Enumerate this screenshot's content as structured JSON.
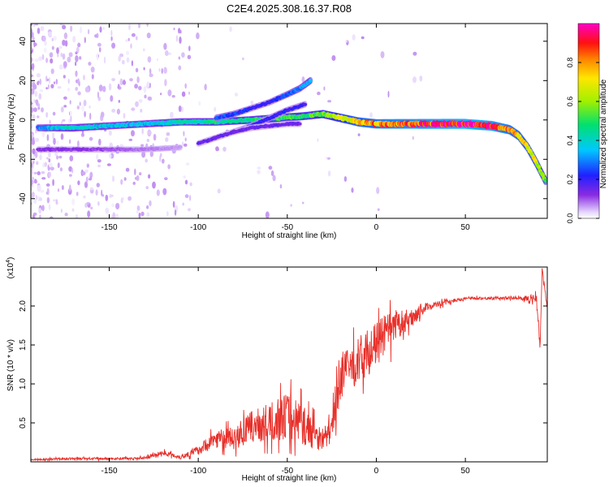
{
  "figure_title": "C2E4.2025.308.16.37.R08",
  "colors": {
    "snr_line": "#e8302a",
    "frame": "#000000",
    "background": "#ffffff"
  },
  "chart_data": [
    {
      "type": "heatmap",
      "title": "C2E4.2025.308.16.37.R08",
      "xlabel": "Height of straight line (km)",
      "ylabel": "Frequency (Hz)",
      "xlim": [
        -194,
        96
      ],
      "ylim": [
        -50,
        49
      ],
      "x_ticks": [
        -150,
        -100,
        -50,
        0,
        50
      ],
      "y_ticks": [
        -40,
        -20,
        0,
        20,
        40
      ],
      "colorbar": {
        "label": "Normalized spectral amplitude",
        "range": [
          0,
          1
        ],
        "ticks": [
          0.0,
          0.2,
          0.4,
          0.6,
          0.8
        ],
        "tick_labels": [
          "0.0",
          "0.2",
          "0.4",
          "0.6",
          "0.8"
        ],
        "colormap": "rainbow (white-violet-blue-cyan-green-yellow-orange-red-magenta)"
      },
      "traces": [
        {
          "name": "main_doppler_trace",
          "x": [
            -190,
            -170,
            -150,
            -130,
            -110,
            -90,
            -70,
            -55,
            -40,
            -30,
            -20,
            -10,
            0,
            10,
            30,
            50,
            65,
            75,
            80,
            85,
            90,
            95
          ],
          "freq_hz": [
            -4,
            -4,
            -3,
            -2,
            -1,
            -1,
            0,
            1,
            2,
            3,
            1,
            -1,
            -2,
            -2,
            -2,
            -2,
            -3,
            -5,
            -8,
            -14,
            -22,
            -31
          ],
          "amplitude": [
            0.3,
            0.4,
            0.35,
            0.35,
            0.4,
            0.45,
            0.45,
            0.5,
            0.5,
            0.55,
            0.65,
            0.75,
            0.8,
            0.85,
            0.9,
            0.95,
            0.9,
            0.8,
            0.75,
            0.7,
            0.65,
            0.55
          ]
        },
        {
          "name": "upper_branch",
          "x": [
            -90,
            -80,
            -70,
            -60,
            -50,
            -43,
            -37
          ],
          "freq_hz": [
            1,
            3,
            6,
            9,
            13,
            16,
            20
          ],
          "amplitude": [
            0.25,
            0.25,
            0.2,
            0.2,
            0.25,
            0.3,
            0.35
          ]
        },
        {
          "name": "middle_branch",
          "x": [
            -80,
            -70,
            -60,
            -50,
            -40
          ],
          "freq_hz": [
            -6,
            -3,
            1,
            5,
            8
          ],
          "amplitude": [
            0.15,
            0.2,
            0.2,
            0.2,
            0.2
          ]
        },
        {
          "name": "lower_branch",
          "x": [
            -100,
            -90,
            -80,
            -70,
            -60,
            -50,
            -43
          ],
          "freq_hz": [
            -12,
            -9,
            -6,
            -4,
            -3,
            -2,
            -2
          ],
          "amplitude": [
            0.15,
            0.15,
            0.15,
            0.15,
            0.15,
            0.15,
            0.15
          ]
        },
        {
          "name": "weak_lower_trace",
          "x": [
            -190,
            -170,
            -150,
            -130,
            -110
          ],
          "freq_hz": [
            -15,
            -15,
            -15,
            -15,
            -14
          ],
          "amplitude": [
            0.12,
            0.12,
            0.1,
            0.08,
            0.06
          ]
        }
      ]
    },
    {
      "type": "line",
      "xlabel": "Height of straight line (km)",
      "ylabel": "SNR (10 * v/v)",
      "y_multiplier": "(x10",
      "y_multiplier_exp": "4",
      "xlim": [
        -194,
        96
      ],
      "ylim": [
        0,
        2.5
      ],
      "x_ticks": [
        -150,
        -100,
        -50,
        0,
        50
      ],
      "y_ticks": [
        0.5,
        1.0,
        1.5,
        2.0
      ],
      "y_tick_labels": [
        "0.5",
        "1.0",
        "1.5",
        "2.0"
      ],
      "series": [
        {
          "name": "SNR",
          "x": [
            -194,
            -170,
            -150,
            -130,
            -120,
            -110,
            -100,
            -90,
            -80,
            -70,
            -60,
            -50,
            -45,
            -40,
            -35,
            -30,
            -25,
            -22,
            -20,
            -15,
            -10,
            -5,
            0,
            5,
            10,
            15,
            20,
            25,
            30,
            40,
            50,
            60,
            70,
            80,
            85,
            90,
            92,
            93,
            96
          ],
          "values": [
            0.03,
            0.04,
            0.04,
            0.05,
            0.12,
            0.06,
            0.15,
            0.3,
            0.3,
            0.45,
            0.5,
            0.6,
            0.55,
            0.45,
            0.35,
            0.3,
            0.4,
            0.95,
            1.1,
            1.2,
            1.3,
            1.4,
            1.5,
            1.65,
            1.7,
            1.8,
            1.85,
            1.95,
            2.0,
            2.05,
            2.1,
            2.1,
            2.1,
            2.1,
            2.1,
            2.1,
            1.45,
            2.45,
            2.0
          ],
          "noise_amplitude": [
            0.01,
            0.015,
            0.015,
            0.02,
            0.03,
            0.03,
            0.06,
            0.12,
            0.15,
            0.2,
            0.25,
            0.3,
            0.3,
            0.25,
            0.2,
            0.15,
            0.15,
            0.35,
            0.3,
            0.3,
            0.3,
            0.3,
            0.28,
            0.25,
            0.25,
            0.15,
            0.12,
            0.08,
            0.05,
            0.03,
            0.02,
            0.02,
            0.02,
            0.02,
            0.04,
            0.06,
            0.06,
            0.06,
            0.05
          ]
        }
      ]
    }
  ]
}
